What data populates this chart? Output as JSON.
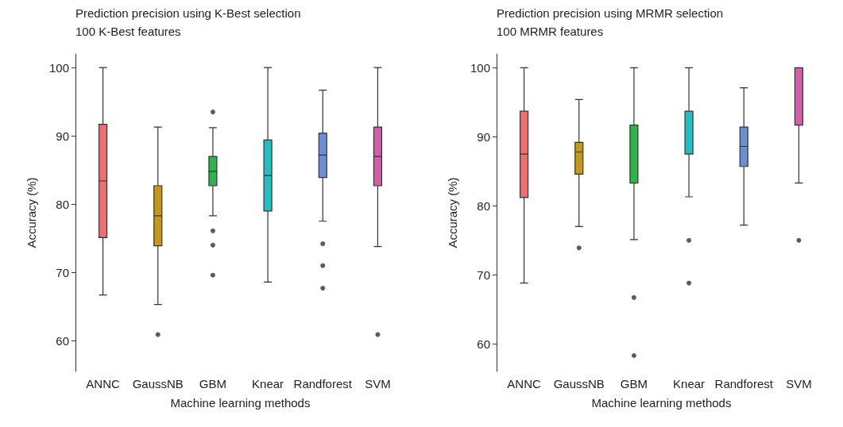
{
  "chart_data": [
    {
      "type": "box",
      "title": "Prediction precision using K-Best selection",
      "subtitle": "100 K-Best features",
      "xlabel": "Machine learning methods",
      "ylabel": "Accuracy (%)",
      "categories": [
        "ANNC",
        "GaussNB",
        "GBM",
        "Knear",
        "Randforest",
        "SVM"
      ],
      "colors": [
        "#f26d6d",
        "#c49a1e",
        "#2bb54a",
        "#1fbfc4",
        "#6b8fd0",
        "#d45ca8"
      ],
      "ylim": [
        55.5,
        102
      ],
      "yticks": [
        60,
        70,
        80,
        90,
        100
      ],
      "boxes": [
        {
          "low": 66.7,
          "q1": 75.1,
          "median": 83.4,
          "q3": 91.7,
          "high": 100
        },
        {
          "low": 65.3,
          "q1": 73.9,
          "median": 78.3,
          "q3": 82.7,
          "high": 91.3,
          "outliers": [
            60.9
          ]
        },
        {
          "low": 78.3,
          "q1": 82.7,
          "median": 84.8,
          "q3": 87.0,
          "high": 91.2,
          "outliers": [
            93.5,
            76.1,
            74.0,
            69.6
          ]
        },
        {
          "low": 68.6,
          "q1": 79.0,
          "median": 84.2,
          "q3": 89.4,
          "high": 100
        },
        {
          "low": 77.5,
          "q1": 83.9,
          "median": 87.2,
          "q3": 90.4,
          "high": 96.7,
          "outliers": [
            74.2,
            71.0,
            67.7
          ]
        },
        {
          "low": 73.8,
          "q1": 82.7,
          "median": 87.0,
          "q3": 91.3,
          "high": 100,
          "outliers": [
            60.9
          ]
        }
      ]
    },
    {
      "type": "box",
      "title": "Prediction precision using MRMR selection",
      "subtitle": "100 MRMR features",
      "xlabel": "Machine learning methods",
      "ylabel": "Accuracy (%)",
      "categories": [
        "ANNC",
        "GaussNB",
        "GBM",
        "Knear",
        "Randforest",
        "SVM"
      ],
      "colors": [
        "#f26d6d",
        "#c49a1e",
        "#2bb54a",
        "#1fbfc4",
        "#6b8fd0",
        "#d45ca8"
      ],
      "ylim": [
        56,
        102
      ],
      "yticks": [
        60,
        70,
        80,
        90,
        100
      ],
      "boxes": [
        {
          "low": 68.8,
          "q1": 81.2,
          "median": 87.5,
          "q3": 93.7,
          "high": 100
        },
        {
          "low": 77.0,
          "q1": 84.6,
          "median": 87.8,
          "q3": 89.2,
          "high": 95.4,
          "outliers": [
            73.9
          ]
        },
        {
          "low": 75.1,
          "q1": 83.3,
          "median": 91.7,
          "q3": 91.7,
          "high": 100,
          "outliers": [
            66.7,
            58.3
          ]
        },
        {
          "low": 81.3,
          "q1": 87.5,
          "median": 93.7,
          "q3": 93.7,
          "high": 100,
          "outliers": [
            75.0,
            68.8
          ]
        },
        {
          "low": 77.2,
          "q1": 85.7,
          "median": 88.6,
          "q3": 91.4,
          "high": 97.1
        },
        {
          "low": 83.3,
          "q1": 91.7,
          "median": 91.7,
          "q3": 100,
          "high": 100,
          "outliers": [
            75.0
          ]
        }
      ]
    }
  ]
}
